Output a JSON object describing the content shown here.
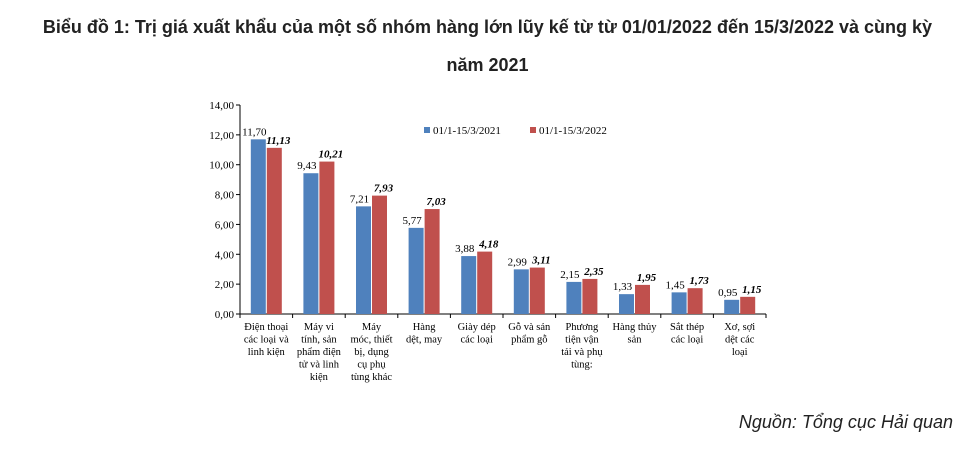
{
  "chart_data": {
    "type": "bar",
    "title_line1": "Biểu đồ 1: Trị giá xuất khẩu của một số nhóm hàng lớn lũy kế từ từ 01/01/2022 đến 15/3/2022 và cùng kỳ",
    "title_line2": "năm 2021",
    "source": "Nguồn: Tổng cục Hải quan",
    "ylim": [
      0,
      14
    ],
    "yticks": [
      "0,00",
      "2,00",
      "4,00",
      "6,00",
      "8,00",
      "10,00",
      "12,00",
      "14,00"
    ],
    "categories": [
      [
        "Điện thoại",
        "các loại và",
        "linh kiện"
      ],
      [
        "Máy vi",
        "tính, sản",
        "phẩm điện",
        "tử và linh",
        "kiện"
      ],
      [
        "Máy",
        "móc, thiết",
        "bị, dụng",
        "cụ phụ",
        "tùng khác"
      ],
      [
        "Hàng",
        "dệt, may"
      ],
      [
        "Giày dép",
        "các loại"
      ],
      [
        "Gỗ và sản",
        "phẩm gỗ"
      ],
      [
        "Phương",
        "tiện vận",
        "tải và phụ",
        "tùng:"
      ],
      [
        "Hàng thủy",
        "sản"
      ],
      [
        "Sắt thép",
        "các loại"
      ],
      [
        "Xơ, sợi",
        "dệt các",
        "loại"
      ]
    ],
    "series": [
      {
        "name": "01/1-15/3/2021",
        "color": "#4f81bd",
        "values": [
          11.7,
          9.43,
          7.21,
          5.77,
          3.88,
          2.99,
          2.15,
          1.33,
          1.45,
          0.95
        ],
        "labels": [
          "11,70",
          "9,43",
          "7,21",
          "5,77",
          "3,88",
          "2,99",
          "2,15",
          "1,33",
          "1,45",
          "0,95"
        ]
      },
      {
        "name": "01/1-15/3/2022",
        "color": "#c0504d",
        "values": [
          11.13,
          10.21,
          7.93,
          7.03,
          4.18,
          3.11,
          2.35,
          1.95,
          1.73,
          1.15
        ],
        "labels": [
          "11,13",
          "10,21",
          "7,93",
          "7,03",
          "4,18",
          "3,11",
          "2,35",
          "1,95",
          "1,73",
          "1,15"
        ]
      }
    ],
    "legend_position": "top-right",
    "grid": false
  }
}
